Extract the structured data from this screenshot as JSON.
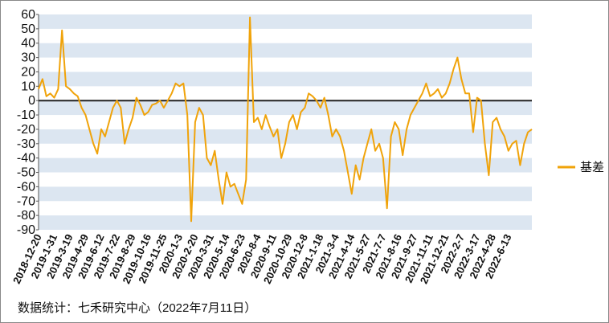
{
  "chart_data": {
    "type": "line",
    "categories": [
      "2018-12-20",
      null,
      null,
      null,
      "2019-1-31",
      null,
      null,
      null,
      "2019-3-19",
      null,
      null,
      null,
      "2019-4-29",
      null,
      null,
      null,
      "2019-6-12",
      null,
      null,
      null,
      "2019-7-22",
      null,
      null,
      null,
      "2019-8-29",
      null,
      null,
      null,
      "2019-10-16",
      null,
      null,
      null,
      "2019-11-25",
      null,
      null,
      null,
      "2020-1-3",
      null,
      null,
      null,
      "2020-2-20",
      null,
      null,
      null,
      "2020-3-31",
      null,
      null,
      null,
      "2020-5-14",
      null,
      null,
      null,
      "2020-6-23",
      null,
      null,
      null,
      "2020-8-4",
      null,
      null,
      null,
      "2020-9-11",
      null,
      null,
      null,
      "2020-10-29",
      null,
      null,
      null,
      "2020-12-8",
      null,
      null,
      null,
      "2021-1-18",
      null,
      null,
      null,
      "2021-3-4",
      null,
      null,
      null,
      "2021-4-14",
      null,
      null,
      null,
      "2021-5-27",
      null,
      null,
      null,
      "2021-7-7",
      null,
      null,
      null,
      "2021-8-16",
      null,
      null,
      null,
      "2021-9-27",
      null,
      null,
      null,
      "2021-11-11",
      null,
      null,
      null,
      "2021-12-21",
      null,
      null,
      null,
      "2022-2-7",
      null,
      null,
      null,
      "2022-3-17",
      null,
      null,
      null,
      "2022-4-28",
      null,
      null,
      null,
      "2022-6-13",
      null,
      null,
      null,
      null,
      null,
      null
    ],
    "series": [
      {
        "name": "基差",
        "color": "#f0a30a",
        "values": [
          8,
          15,
          3,
          5,
          2,
          8,
          49,
          10,
          8,
          5,
          3,
          -5,
          -10,
          -20,
          -30,
          -37,
          -20,
          -25,
          -15,
          -5,
          0,
          -5,
          -30,
          -20,
          -12,
          2,
          -3,
          -10,
          -8,
          -3,
          -2,
          0,
          -5,
          0,
          5,
          12,
          10,
          12,
          -10,
          -84,
          -15,
          -5,
          -10,
          -40,
          -45,
          -35,
          -55,
          -72,
          -50,
          -60,
          -58,
          -65,
          -72,
          -55,
          58,
          -15,
          -12,
          -20,
          -10,
          -18,
          -25,
          -20,
          -40,
          -30,
          -15,
          -10,
          -20,
          -8,
          -5,
          5,
          3,
          0,
          -5,
          2,
          -10,
          -25,
          -20,
          -25,
          -35,
          -50,
          -65,
          -45,
          -55,
          -40,
          -30,
          -20,
          -35,
          -30,
          -40,
          -75,
          -25,
          -15,
          -20,
          -38,
          -20,
          -10,
          -5,
          0,
          5,
          12,
          3,
          5,
          8,
          2,
          5,
          12,
          22,
          30,
          15,
          5,
          5,
          -22,
          2,
          0,
          -30,
          -52,
          -15,
          -12,
          -20,
          -25,
          -35,
          -30,
          -28,
          -45,
          -30,
          -22,
          -20
        ]
      }
    ],
    "ylim": [
      -90,
      60
    ],
    "yticks": [
      -90,
      -80,
      -70,
      -60,
      -50,
      -40,
      -30,
      -20,
      -10,
      0,
      10,
      20,
      30,
      40,
      50,
      60
    ],
    "grid": true,
    "band_color": "#dce6f1",
    "legend": "right",
    "source": "数据统计：七禾研究中心（2022年7月11日）"
  }
}
